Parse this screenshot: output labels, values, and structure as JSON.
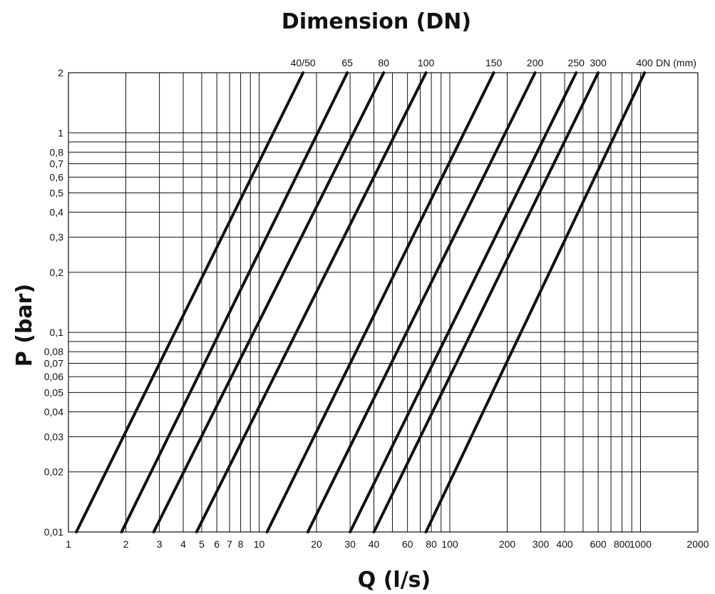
{
  "chart_data": {
    "type": "line",
    "title": "Dimension (DN)",
    "xlabel": "Q (l/s)",
    "ylabel": "P (bar)",
    "x_scale": "log",
    "y_scale": "log",
    "xlim": [
      1,
      2000
    ],
    "ylim": [
      0.01,
      2
    ],
    "grid": true,
    "x_ticks": [
      {
        "v": 1,
        "label": "1"
      },
      {
        "v": 2,
        "label": "2"
      },
      {
        "v": 3,
        "label": "3"
      },
      {
        "v": 4,
        "label": "4"
      },
      {
        "v": 5,
        "label": "5"
      },
      {
        "v": 6,
        "label": "6"
      },
      {
        "v": 7,
        "label": "7"
      },
      {
        "v": 8,
        "label": "8"
      },
      {
        "v": 10,
        "label": "10"
      },
      {
        "v": 20,
        "label": "20"
      },
      {
        "v": 30,
        "label": "30"
      },
      {
        "v": 40,
        "label": "40"
      },
      {
        "v": 60,
        "label": "60"
      },
      {
        "v": 80,
        "label": "80"
      },
      {
        "v": 100,
        "label": "100"
      },
      {
        "v": 200,
        "label": "200"
      },
      {
        "v": 300,
        "label": "300"
      },
      {
        "v": 400,
        "label": "400"
      },
      {
        "v": 600,
        "label": "600"
      },
      {
        "v": 800,
        "label": "800"
      },
      {
        "v": 1000,
        "label": "1000"
      },
      {
        "v": 2000,
        "label": "2000"
      }
    ],
    "x_gridlines": [
      1,
      2,
      3,
      4,
      5,
      6,
      7,
      8,
      9,
      10,
      20,
      30,
      40,
      50,
      60,
      70,
      80,
      90,
      100,
      200,
      300,
      400,
      500,
      600,
      700,
      800,
      900,
      1000,
      2000
    ],
    "y_ticks": [
      {
        "v": 0.01,
        "label": "0,01"
      },
      {
        "v": 0.02,
        "label": "0,02"
      },
      {
        "v": 0.03,
        "label": "0,03"
      },
      {
        "v": 0.04,
        "label": "0,04"
      },
      {
        "v": 0.05,
        "label": "0,05"
      },
      {
        "v": 0.06,
        "label": "0,06"
      },
      {
        "v": 0.07,
        "label": "0,07"
      },
      {
        "v": 0.08,
        "label": "0,08"
      },
      {
        "v": 0.1,
        "label": "0,1"
      },
      {
        "v": 0.2,
        "label": "0,2"
      },
      {
        "v": 0.3,
        "label": "0,3"
      },
      {
        "v": 0.4,
        "label": "0,4"
      },
      {
        "v": 0.5,
        "label": "0,5"
      },
      {
        "v": 0.6,
        "label": "0,6"
      },
      {
        "v": 0.7,
        "label": "0,7"
      },
      {
        "v": 0.8,
        "label": "0,8"
      },
      {
        "v": 1,
        "label": "1"
      },
      {
        "v": 2,
        "label": "2"
      }
    ],
    "y_gridlines": [
      0.01,
      0.02,
      0.03,
      0.04,
      0.05,
      0.06,
      0.07,
      0.08,
      0.09,
      0.1,
      0.2,
      0.3,
      0.4,
      0.5,
      0.6,
      0.7,
      0.8,
      0.9,
      1,
      2
    ],
    "series": [
      {
        "name": "40/50",
        "points": [
          [
            1.1,
            0.01
          ],
          [
            17,
            2
          ]
        ]
      },
      {
        "name": "65",
        "points": [
          [
            1.9,
            0.01
          ],
          [
            29,
            2
          ]
        ]
      },
      {
        "name": "80",
        "points": [
          [
            2.8,
            0.01
          ],
          [
            45,
            2
          ]
        ]
      },
      {
        "name": "100",
        "points": [
          [
            4.7,
            0.01
          ],
          [
            75,
            2
          ]
        ]
      },
      {
        "name": "150",
        "points": [
          [
            11,
            0.01
          ],
          [
            170,
            2
          ]
        ]
      },
      {
        "name": "200",
        "points": [
          [
            18,
            0.01
          ],
          [
            280,
            2
          ]
        ]
      },
      {
        "name": "250",
        "points": [
          [
            30,
            0.01
          ],
          [
            460,
            2
          ]
        ]
      },
      {
        "name": "300",
        "points": [
          [
            40,
            0.01
          ],
          [
            600,
            2
          ]
        ]
      },
      {
        "name": "400",
        "points": [
          [
            75,
            0.01
          ],
          [
            1050,
            2
          ]
        ]
      }
    ],
    "top_unit_label": "DN (mm)"
  }
}
